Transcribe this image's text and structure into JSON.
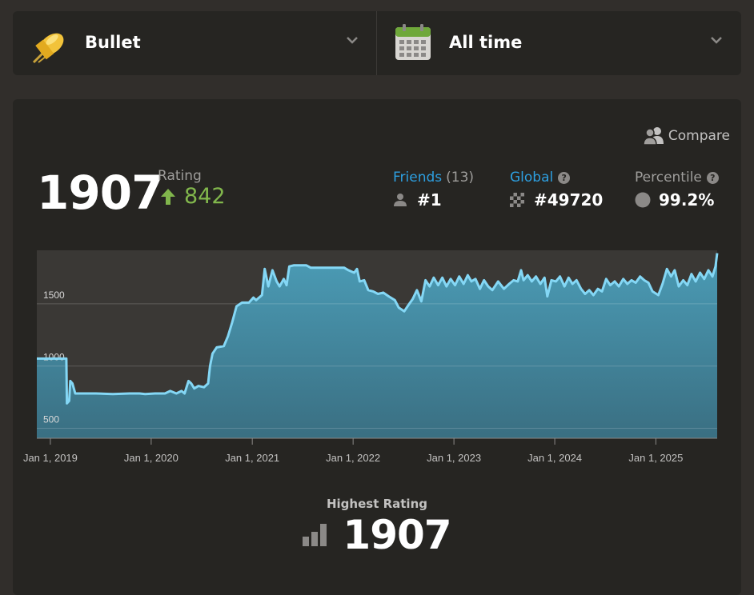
{
  "selector": {
    "game_type": "Bullet",
    "time_range": "All time",
    "game_icon": "bullet-icon",
    "range_icon": "calendar-icon"
  },
  "card": {
    "compare_label": "Compare",
    "rating_value": "1907",
    "rating_label": "Rating",
    "rating_change": "842",
    "friends_label": "Friends",
    "friends_count": "(13)",
    "friends_rank": "#1",
    "global_label": "Global",
    "global_rank": "#49720",
    "percentile_label": "Percentile",
    "percentile_value": "99.2%",
    "highest_label": "Highest Rating",
    "highest_value": "1907"
  },
  "colors": {
    "accent_blue": "#2d9fe0",
    "up_green": "#81b64c",
    "line": "#84d7f5"
  },
  "chart_data": {
    "type": "area",
    "title": "",
    "xlabel": "",
    "ylabel": "",
    "y_ticks": [
      "1500",
      "1000",
      "500"
    ],
    "x_ticks": [
      "Jan 1, 2019",
      "Jan 1, 2020",
      "Jan 1, 2021",
      "Jan 1, 2022",
      "Jan 1, 2023",
      "Jan 1, 2024",
      "Jan 1, 2025"
    ],
    "ylim": [
      420,
      1930
    ],
    "xlim": [
      "2018-11-13",
      "2025-08-11"
    ],
    "grid": true,
    "series": [
      {
        "points": [
          [
            "2018-11-13",
            1060
          ],
          [
            "2019-02-28",
            1060
          ],
          [
            "2019-03-02",
            700
          ],
          [
            "2019-03-10",
            720
          ],
          [
            "2019-03-14",
            880
          ],
          [
            "2019-03-22",
            860
          ],
          [
            "2019-04-01",
            780
          ],
          [
            "2019-06-15",
            780
          ],
          [
            "2019-08-15",
            775
          ],
          [
            "2019-10-15",
            780
          ],
          [
            "2019-11-20",
            780
          ],
          [
            "2019-12-10",
            775
          ],
          [
            "2020-01-15",
            780
          ],
          [
            "2020-02-20",
            780
          ],
          [
            "2020-03-10",
            800
          ],
          [
            "2020-04-01",
            780
          ],
          [
            "2020-04-20",
            800
          ],
          [
            "2020-05-01",
            780
          ],
          [
            "2020-05-15",
            880
          ],
          [
            "2020-05-25",
            860
          ],
          [
            "2020-06-05",
            820
          ],
          [
            "2020-06-20",
            840
          ],
          [
            "2020-07-10",
            830
          ],
          [
            "2020-07-25",
            860
          ],
          [
            "2020-08-01",
            1000
          ],
          [
            "2020-08-10",
            1100
          ],
          [
            "2020-08-25",
            1150
          ],
          [
            "2020-09-20",
            1160
          ],
          [
            "2020-10-05",
            1240
          ],
          [
            "2020-10-20",
            1350
          ],
          [
            "2020-11-05",
            1480
          ],
          [
            "2020-11-25",
            1510
          ],
          [
            "2020-12-20",
            1510
          ],
          [
            "2021-01-05",
            1550
          ],
          [
            "2021-01-15",
            1530
          ],
          [
            "2021-02-05",
            1570
          ],
          [
            "2021-02-15",
            1780
          ],
          [
            "2021-02-28",
            1640
          ],
          [
            "2021-03-15",
            1770
          ],
          [
            "2021-03-30",
            1680
          ],
          [
            "2021-04-10",
            1640
          ],
          [
            "2021-04-25",
            1700
          ],
          [
            "2021-05-05",
            1650
          ],
          [
            "2021-05-15",
            1800
          ],
          [
            "2021-06-01",
            1810
          ],
          [
            "2021-07-15",
            1810
          ],
          [
            "2021-08-01",
            1790
          ],
          [
            "2021-10-15",
            1790
          ],
          [
            "2021-11-30",
            1790
          ],
          [
            "2021-12-15",
            1770
          ],
          [
            "2022-01-05",
            1750
          ],
          [
            "2022-01-15",
            1780
          ],
          [
            "2022-01-25",
            1680
          ],
          [
            "2022-02-10",
            1690
          ],
          [
            "2022-02-25",
            1610
          ],
          [
            "2022-03-15",
            1600
          ],
          [
            "2022-04-01",
            1580
          ],
          [
            "2022-04-20",
            1590
          ],
          [
            "2022-05-10",
            1560
          ],
          [
            "2022-06-01",
            1530
          ],
          [
            "2022-06-15",
            1470
          ],
          [
            "2022-07-05",
            1440
          ],
          [
            "2022-07-20",
            1490
          ],
          [
            "2022-08-05",
            1540
          ],
          [
            "2022-08-20",
            1610
          ],
          [
            "2022-09-05",
            1520
          ],
          [
            "2022-09-20",
            1690
          ],
          [
            "2022-10-05",
            1640
          ],
          [
            "2022-10-20",
            1710
          ],
          [
            "2022-11-05",
            1650
          ],
          [
            "2022-11-20",
            1710
          ],
          [
            "2022-12-05",
            1640
          ],
          [
            "2022-12-20",
            1700
          ],
          [
            "2023-01-05",
            1650
          ],
          [
            "2023-01-20",
            1720
          ],
          [
            "2023-02-05",
            1660
          ],
          [
            "2023-02-20",
            1730
          ],
          [
            "2023-03-05",
            1680
          ],
          [
            "2023-03-20",
            1700
          ],
          [
            "2023-04-05",
            1620
          ],
          [
            "2023-04-20",
            1690
          ],
          [
            "2023-05-05",
            1640
          ],
          [
            "2023-05-20",
            1610
          ],
          [
            "2023-06-10",
            1680
          ],
          [
            "2023-07-01",
            1620
          ],
          [
            "2023-07-20",
            1660
          ],
          [
            "2023-08-05",
            1690
          ],
          [
            "2023-08-20",
            1680
          ],
          [
            "2023-09-01",
            1770
          ],
          [
            "2023-09-10",
            1690
          ],
          [
            "2023-09-25",
            1730
          ],
          [
            "2023-10-10",
            1680
          ],
          [
            "2023-10-25",
            1720
          ],
          [
            "2023-11-10",
            1660
          ],
          [
            "2023-11-25",
            1710
          ],
          [
            "2023-12-05",
            1560
          ],
          [
            "2023-12-20",
            1690
          ],
          [
            "2024-01-05",
            1680
          ],
          [
            "2024-01-20",
            1720
          ],
          [
            "2024-02-05",
            1640
          ],
          [
            "2024-02-20",
            1710
          ],
          [
            "2024-03-05",
            1660
          ],
          [
            "2024-03-20",
            1690
          ],
          [
            "2024-04-05",
            1620
          ],
          [
            "2024-04-20",
            1580
          ],
          [
            "2024-05-05",
            1610
          ],
          [
            "2024-05-20",
            1570
          ],
          [
            "2024-06-05",
            1620
          ],
          [
            "2024-06-20",
            1600
          ],
          [
            "2024-07-05",
            1700
          ],
          [
            "2024-07-20",
            1650
          ],
          [
            "2024-08-05",
            1680
          ],
          [
            "2024-08-20",
            1640
          ],
          [
            "2024-09-05",
            1700
          ],
          [
            "2024-09-20",
            1660
          ],
          [
            "2024-10-05",
            1690
          ],
          [
            "2024-10-20",
            1670
          ],
          [
            "2024-11-05",
            1720
          ],
          [
            "2024-11-20",
            1690
          ],
          [
            "2024-12-05",
            1670
          ],
          [
            "2024-12-20",
            1600
          ],
          [
            "2025-01-10",
            1570
          ],
          [
            "2025-01-25",
            1660
          ],
          [
            "2025-02-10",
            1780
          ],
          [
            "2025-02-25",
            1720
          ],
          [
            "2025-03-10",
            1770
          ],
          [
            "2025-03-25",
            1640
          ],
          [
            "2025-04-10",
            1690
          ],
          [
            "2025-04-25",
            1650
          ],
          [
            "2025-05-10",
            1740
          ],
          [
            "2025-05-25",
            1680
          ],
          [
            "2025-06-10",
            1750
          ],
          [
            "2025-06-25",
            1700
          ],
          [
            "2025-07-10",
            1770
          ],
          [
            "2025-07-25",
            1720
          ],
          [
            "2025-08-05",
            1800
          ],
          [
            "2025-08-11",
            1907
          ]
        ]
      }
    ]
  }
}
